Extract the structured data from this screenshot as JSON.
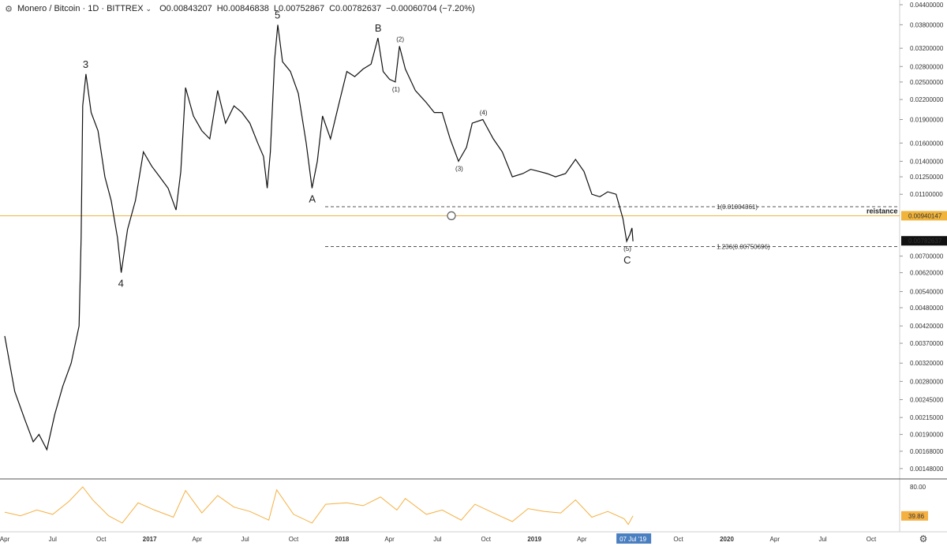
{
  "header": {
    "symbol": "Monero / Bitcoin · 1D · BITTREX",
    "open": "O0.00843207",
    "high": "H0.00846838",
    "low": "L0.00752867",
    "close": "C0.00782637",
    "change": "−0.00060704 (−7.20%)"
  },
  "chart_data": {
    "type": "line",
    "title": "Monero / Bitcoin",
    "y_scale": "log",
    "ylim": [
      0.00138,
      0.0445
    ],
    "y_ticks": [
      "0.04400000",
      "0.03800000",
      "0.03200000",
      "0.02800000",
      "0.02500000",
      "0.02200000",
      "0.01900000",
      "0.01600000",
      "0.01400000",
      "0.01250000",
      "0.01100000",
      "0.00940147",
      "0.00782637",
      "0.00700000",
      "0.00620000",
      "0.00540000",
      "0.00480000",
      "0.00420000",
      "0.00370000",
      "0.00320000",
      "0.00280000",
      "0.00245000",
      "0.00215000",
      "0.00190000",
      "0.00168000",
      "0.00148000"
    ],
    "x_ticks": [
      "Apr",
      "Jul",
      "Oct",
      "2017",
      "Apr",
      "Jul",
      "Oct",
      "2018",
      "Apr",
      "Jul",
      "Oct",
      "2019",
      "Apr",
      "07 Jul '19",
      "Oct",
      "2020",
      "Apr",
      "Jul",
      "Oct"
    ],
    "current_date_label": "07 Jul '19",
    "series": [
      {
        "values": [
          [
            "2016-04-01",
            0.0039
          ],
          [
            "2016-04-20",
            0.0026
          ],
          [
            "2016-05-10",
            0.0021
          ],
          [
            "2016-05-25",
            0.0018
          ],
          [
            "2016-06-05",
            0.0019
          ],
          [
            "2016-06-20",
            0.0017
          ],
          [
            "2016-07-05",
            0.0022
          ],
          [
            "2016-07-20",
            0.0027
          ],
          [
            "2016-08-05",
            0.0032
          ],
          [
            "2016-08-20",
            0.0042
          ],
          [
            "2016-08-24",
            0.008
          ],
          [
            "2016-08-27",
            0.021
          ],
          [
            "2016-09-02",
            0.0265
          ],
          [
            "2016-09-12",
            0.02
          ],
          [
            "2016-09-25",
            0.0175
          ],
          [
            "2016-10-08",
            0.0125
          ],
          [
            "2016-10-20",
            0.0105
          ],
          [
            "2016-11-01",
            0.008
          ],
          [
            "2016-11-08",
            0.0062
          ],
          [
            "2016-11-20",
            0.0085
          ],
          [
            "2016-12-05",
            0.0105
          ],
          [
            "2016-12-20",
            0.015
          ],
          [
            "2017-01-05",
            0.0135
          ],
          [
            "2017-01-20",
            0.0125
          ],
          [
            "2017-02-05",
            0.0115
          ],
          [
            "2017-02-20",
            0.0098
          ],
          [
            "2017-03-01",
            0.013
          ],
          [
            "2017-03-10",
            0.024
          ],
          [
            "2017-03-25",
            0.0195
          ],
          [
            "2017-04-10",
            0.0175
          ],
          [
            "2017-04-25",
            0.0165
          ],
          [
            "2017-05-10",
            0.0235
          ],
          [
            "2017-05-25",
            0.0185
          ],
          [
            "2017-06-10",
            0.021
          ],
          [
            "2017-06-25",
            0.02
          ],
          [
            "2017-07-10",
            0.0185
          ],
          [
            "2017-07-25",
            0.016
          ],
          [
            "2017-08-05",
            0.0145
          ],
          [
            "2017-08-12",
            0.0115
          ],
          [
            "2017-08-18",
            0.015
          ],
          [
            "2017-08-26",
            0.0295
          ],
          [
            "2017-09-01",
            0.038
          ],
          [
            "2017-09-10",
            0.029
          ],
          [
            "2017-09-25",
            0.027
          ],
          [
            "2017-10-10",
            0.023
          ],
          [
            "2017-10-25",
            0.016
          ],
          [
            "2017-11-05",
            0.0115
          ],
          [
            "2017-11-15",
            0.014
          ],
          [
            "2017-11-25",
            0.0195
          ],
          [
            "2017-12-10",
            0.0165
          ],
          [
            "2017-12-25",
            0.021
          ],
          [
            "2018-01-10",
            0.027
          ],
          [
            "2018-01-25",
            0.026
          ],
          [
            "2018-02-10",
            0.0275
          ],
          [
            "2018-02-25",
            0.0285
          ],
          [
            "2018-03-10",
            0.0345
          ],
          [
            "2018-03-20",
            0.027
          ],
          [
            "2018-04-01",
            0.0255
          ],
          [
            "2018-04-12",
            0.025
          ],
          [
            "2018-04-20",
            0.0325
          ],
          [
            "2018-05-01",
            0.0275
          ],
          [
            "2018-05-20",
            0.0235
          ],
          [
            "2018-06-10",
            0.0215
          ],
          [
            "2018-06-25",
            0.02
          ],
          [
            "2018-07-10",
            0.02
          ],
          [
            "2018-07-25",
            0.0165
          ],
          [
            "2018-08-10",
            0.014
          ],
          [
            "2018-08-25",
            0.0155
          ],
          [
            "2018-09-05",
            0.0185
          ],
          [
            "2018-09-25",
            0.019
          ],
          [
            "2018-10-15",
            0.0165
          ],
          [
            "2018-11-01",
            0.015
          ],
          [
            "2018-11-20",
            0.0125
          ],
          [
            "2018-12-10",
            0.0128
          ],
          [
            "2018-12-25",
            0.0132
          ],
          [
            "2019-01-10",
            0.013
          ],
          [
            "2019-01-25",
            0.0128
          ],
          [
            "2019-02-10",
            0.0125
          ],
          [
            "2019-03-01",
            0.0128
          ],
          [
            "2019-03-20",
            0.0142
          ],
          [
            "2019-04-05",
            0.013
          ],
          [
            "2019-04-20",
            0.011
          ],
          [
            "2019-05-05",
            0.0108
          ],
          [
            "2019-05-20",
            0.0112
          ],
          [
            "2019-06-05",
            0.011
          ],
          [
            "2019-06-18",
            0.0092
          ],
          [
            "2019-06-25",
            0.0078
          ],
          [
            "2019-07-01",
            0.0082
          ],
          [
            "2019-07-05",
            0.0086
          ],
          [
            "2019-07-07",
            0.0078
          ]
        ]
      },
      {
        "name": "indicator",
        "y_ticks": [
          "80.00",
          "39.86"
        ],
        "current_value": "39.86",
        "values": [
          [
            "2016-04-01",
            45
          ],
          [
            "2016-05-01",
            40
          ],
          [
            "2016-06-01",
            48
          ],
          [
            "2016-07-01",
            42
          ],
          [
            "2016-08-01",
            60
          ],
          [
            "2016-08-27",
            80
          ],
          [
            "2016-09-15",
            62
          ],
          [
            "2016-10-15",
            40
          ],
          [
            "2016-11-10",
            30
          ],
          [
            "2016-12-10",
            58
          ],
          [
            "2017-01-10",
            48
          ],
          [
            "2017-02-15",
            38
          ],
          [
            "2017-03-10",
            75
          ],
          [
            "2017-04-10",
            44
          ],
          [
            "2017-05-10",
            68
          ],
          [
            "2017-06-10",
            52
          ],
          [
            "2017-07-10",
            46
          ],
          [
            "2017-08-15",
            34
          ],
          [
            "2017-08-30",
            76
          ],
          [
            "2017-10-01",
            42
          ],
          [
            "2017-11-05",
            30
          ],
          [
            "2017-12-01",
            56
          ],
          [
            "2018-01-10",
            58
          ],
          [
            "2018-02-10",
            54
          ],
          [
            "2018-03-15",
            66
          ],
          [
            "2018-04-15",
            48
          ],
          [
            "2018-05-01",
            64
          ],
          [
            "2018-06-10",
            42
          ],
          [
            "2018-07-10",
            48
          ],
          [
            "2018-08-15",
            34
          ],
          [
            "2018-09-10",
            56
          ],
          [
            "2018-10-15",
            44
          ],
          [
            "2018-11-20",
            32
          ],
          [
            "2018-12-20",
            50
          ],
          [
            "2019-01-20",
            46
          ],
          [
            "2019-02-20",
            44
          ],
          [
            "2019-03-20",
            62
          ],
          [
            "2019-04-20",
            38
          ],
          [
            "2019-05-20",
            46
          ],
          [
            "2019-06-20",
            36
          ],
          [
            "2019-06-28",
            28
          ],
          [
            "2019-07-07",
            40
          ]
        ]
      }
    ],
    "annotations": {
      "fib_1": "1(0.01004361)",
      "fib_1236": "1.236(0.00750696)",
      "resistance_label": "reistance",
      "resistance_value": "0.00940147",
      "last_price": "0.00782637",
      "waves": [
        {
          "label": "3",
          "date": "2016-09-02",
          "price": 0.0265
        },
        {
          "label": "4",
          "date": "2016-11-08",
          "price": 0.0062
        },
        {
          "label": "5",
          "date": "2017-09-01",
          "price": 0.038
        },
        {
          "label": "A",
          "date": "2017-11-05",
          "price": 0.0115
        },
        {
          "label": "B",
          "date": "2018-03-10",
          "price": 0.0345
        },
        {
          "label": "(1)",
          "date": "2018-04-12",
          "price": 0.025
        },
        {
          "label": "(2)",
          "date": "2018-04-20",
          "price": 0.0325
        },
        {
          "label": "(3)",
          "date": "2018-08-10",
          "price": 0.014
        },
        {
          "label": "(4)",
          "date": "2018-09-25",
          "price": 0.019
        },
        {
          "label": "(5)",
          "date": "2019-06-25",
          "price": 0.0078
        },
        {
          "label": "C",
          "date": "2019-06-25",
          "price": 0.0078
        }
      ]
    },
    "grid": false,
    "colors": {
      "resistance": "#f0b43c",
      "indicator": "#f5b042",
      "price": "#111111",
      "date_badge": "#4a7fc1"
    }
  }
}
